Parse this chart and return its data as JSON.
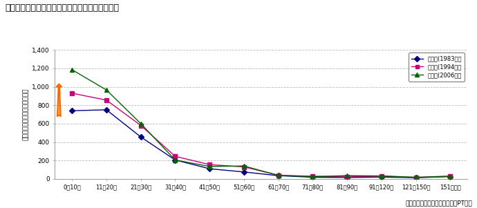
{
  "title": "【自動車利用トリップのトリップ長分布の変化】",
  "ylabel": "トリップ数（千トリップ／日）",
  "source": "資料：第２～４回　道央都市圈PT調査",
  "categories": [
    "0～10分",
    "11～20分",
    "21～30分",
    "31～40分",
    "41～50分",
    "51～60分",
    "61～70分",
    "71～80分",
    "81～90分",
    "91～120分",
    "121～150分",
    "151分以上"
  ],
  "series": [
    {
      "label": "第２回(1983年）",
      "color": "#000080",
      "marker": "D",
      "values": [
        740,
        750,
        455,
        205,
        110,
        75,
        35,
        18,
        15,
        20,
        12,
        25
      ]
    },
    {
      "label": "第３回(1994年）",
      "color": "#CC007A",
      "marker": "s",
      "values": [
        930,
        855,
        580,
        245,
        155,
        130,
        40,
        28,
        22,
        30,
        15,
        28
      ]
    },
    {
      "label": "第４回(2006年）",
      "color": "#006400",
      "marker": "^",
      "values": [
        1185,
        965,
        600,
        205,
        135,
        140,
        38,
        25,
        35,
        32,
        18,
        30
      ]
    }
  ],
  "ylim": [
    0,
    1400
  ],
  "yticks": [
    0,
    200,
    400,
    600,
    800,
    1000,
    1200,
    1400
  ],
  "ytick_labels": [
    "0",
    "200",
    "400",
    "600",
    "800",
    "1,000",
    "1,200",
    "1,400"
  ],
  "arrow_color": "#FF6600",
  "arrow_face": "#FFAA44",
  "bg_color": "#FFFFFF",
  "grid_color": "#BBBBBB"
}
